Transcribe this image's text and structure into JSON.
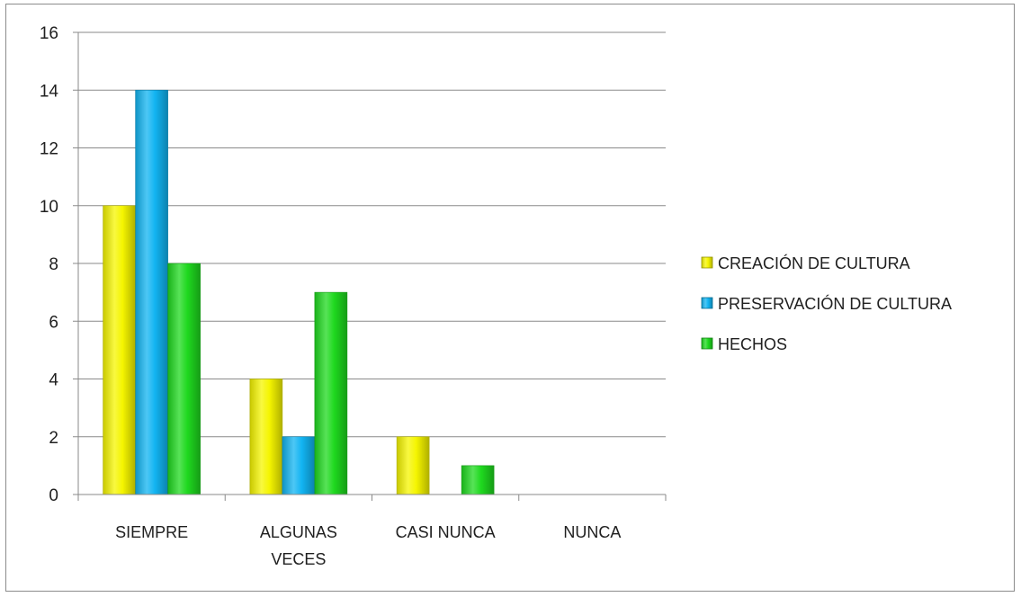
{
  "colors": {
    "creacion": "#f5f500",
    "preservacion": "#12b4f2",
    "hechos": "#1fd91f",
    "grid": "#8a8a8a",
    "axis": "#8a8a8a",
    "text": "#202020"
  },
  "chart_data": {
    "type": "bar",
    "title": "",
    "xlabel": "",
    "ylabel": "",
    "ylim": [
      0,
      16
    ],
    "yticks": [
      "0",
      "2",
      "4",
      "6",
      "8",
      "10",
      "12",
      "14",
      "16"
    ],
    "categories": [
      "SIEMPRE",
      "ALGUNAS VECES",
      "CASI NUNCA",
      "NUNCA"
    ],
    "category_labels": [
      [
        "SIEMPRE"
      ],
      [
        "ALGUNAS",
        "VECES"
      ],
      [
        "CASI NUNCA"
      ],
      [
        "NUNCA"
      ]
    ],
    "series": [
      {
        "name": "CREACIÓN DE CULTURA",
        "color_key": "creacion",
        "values": [
          10,
          4,
          2,
          0
        ]
      },
      {
        "name": "PRESERVACIÓN DE CULTURA",
        "color_key": "preservacion",
        "values": [
          14,
          2,
          0,
          0
        ]
      },
      {
        "name": "HECHOS",
        "color_key": "hechos",
        "values": [
          8,
          7,
          1,
          0
        ]
      }
    ],
    "legend": {
      "placement": "right"
    },
    "grid": true
  }
}
